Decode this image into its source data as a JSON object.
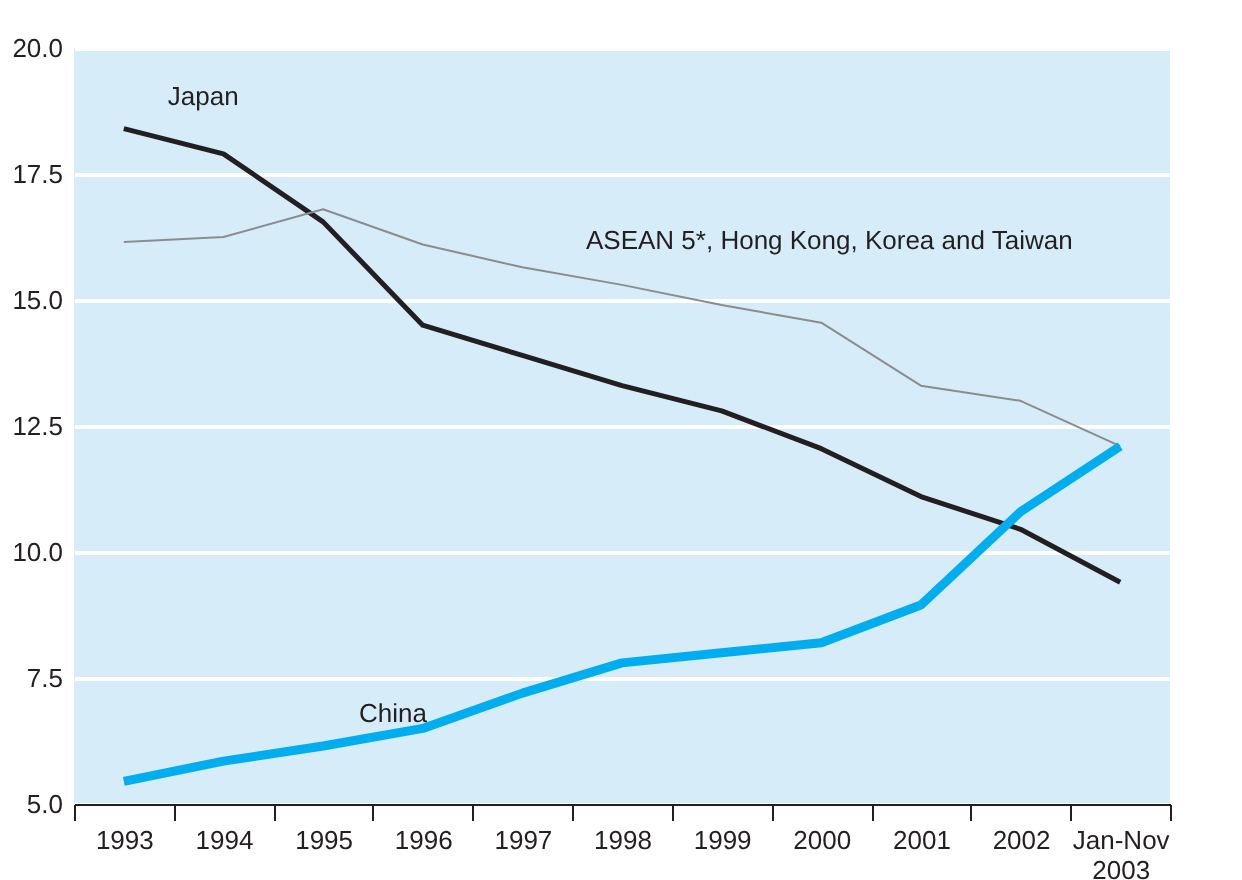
{
  "chart_data": {
    "type": "line",
    "categories": [
      "1993",
      "1994",
      "1995",
      "1996",
      "1997",
      "1998",
      "1999",
      "2000",
      "2001",
      "2002",
      "Jan-Nov 2003"
    ],
    "series": [
      {
        "name": "Japan",
        "color": "#231f20",
        "values": [
          18.4,
          17.9,
          16.55,
          14.5,
          13.9,
          13.3,
          12.8,
          12.05,
          11.1,
          10.45,
          9.4
        ]
      },
      {
        "name": "ASEAN 5*, Hong Kong, Korea and Taiwan",
        "color": "#8c8c8c",
        "values": [
          16.15,
          16.25,
          16.8,
          16.1,
          15.65,
          15.3,
          14.9,
          14.55,
          13.3,
          13.0,
          12.1
        ]
      },
      {
        "name": "China",
        "color": "#00aeef",
        "values": [
          5.45,
          5.85,
          6.15,
          6.5,
          7.2,
          7.8,
          8.0,
          8.2,
          8.95,
          10.8,
          12.1
        ]
      }
    ],
    "ylim": [
      5,
      20
    ],
    "yticks": [
      {
        "value": 5,
        "label": "5.0"
      },
      7.5,
      {
        "value": 10,
        "label": "10.0"
      },
      12.5,
      {
        "value": 15,
        "label": "15.0"
      },
      17.5,
      {
        "value": 20,
        "label": "20.0"
      }
    ],
    "grid": "y",
    "marker": "none",
    "line_style": "solid"
  }
}
